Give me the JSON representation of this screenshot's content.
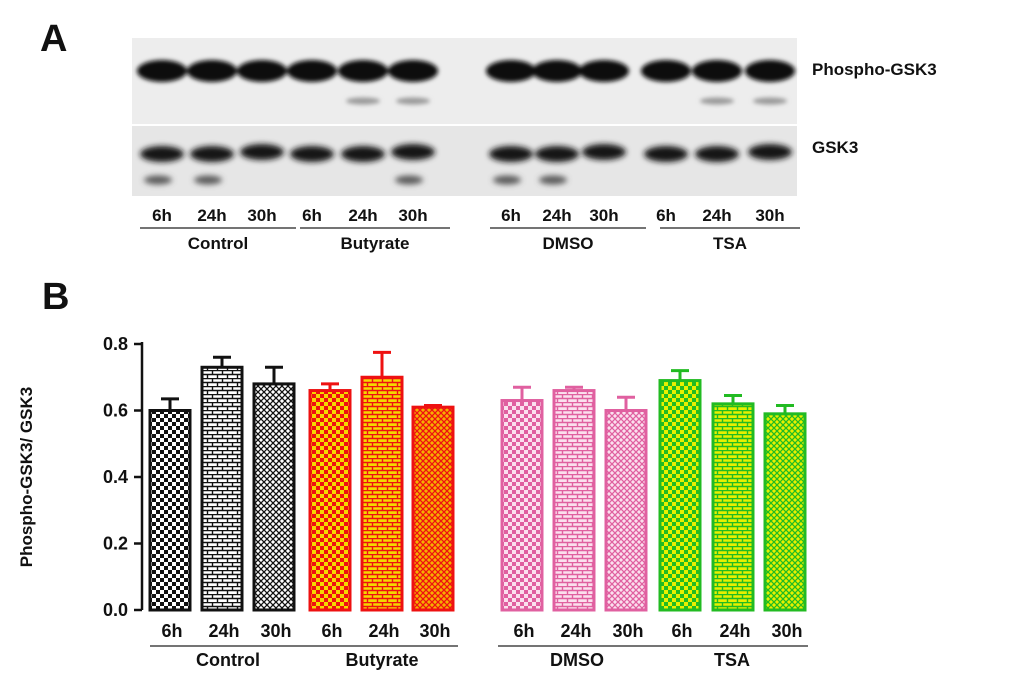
{
  "panel_a": {
    "letter": "A",
    "top_label": "Phospho-GSK3",
    "bottom_label": "GSK3",
    "lane_labels": [
      "6h",
      "24h",
      "30h",
      "6h",
      "24h",
      "30h",
      "6h",
      "24h",
      "30h",
      "6h",
      "24h",
      "30h"
    ],
    "group_labels": [
      "Control",
      "Butyrate",
      "DMSO",
      "TSA"
    ]
  },
  "panel_b": {
    "letter": "B"
  },
  "chart_data": {
    "type": "bar",
    "title": "",
    "xlabel": "",
    "ylabel": "Phospho-GSK3/ GSK3",
    "ylim": [
      0,
      0.8
    ],
    "yticks": [
      "0.0",
      "0.2",
      "0.4",
      "0.6",
      "0.8"
    ],
    "categories": [
      "6h",
      "24h",
      "30h",
      "6h",
      "24h",
      "30h",
      "6h",
      "24h",
      "30h",
      "6h",
      "24h",
      "30h"
    ],
    "groups": [
      "Control",
      "Butyrate",
      "DMSO",
      "TSA"
    ],
    "values": [
      0.6,
      0.73,
      0.68,
      0.66,
      0.7,
      0.61,
      0.63,
      0.66,
      0.6,
      0.69,
      0.62,
      0.59
    ],
    "errors": [
      0.035,
      0.03,
      0.05,
      0.02,
      0.075,
      0.005,
      0.04,
      0.01,
      0.04,
      0.03,
      0.025,
      0.025
    ],
    "group_colors": [
      "#111111",
      "#ee1111",
      "#e060a0",
      "#22bb22"
    ],
    "group_fills": [
      "#ffffff",
      "#f5d800",
      "#f8c8e0",
      "#e8f000"
    ],
    "grid": false
  }
}
